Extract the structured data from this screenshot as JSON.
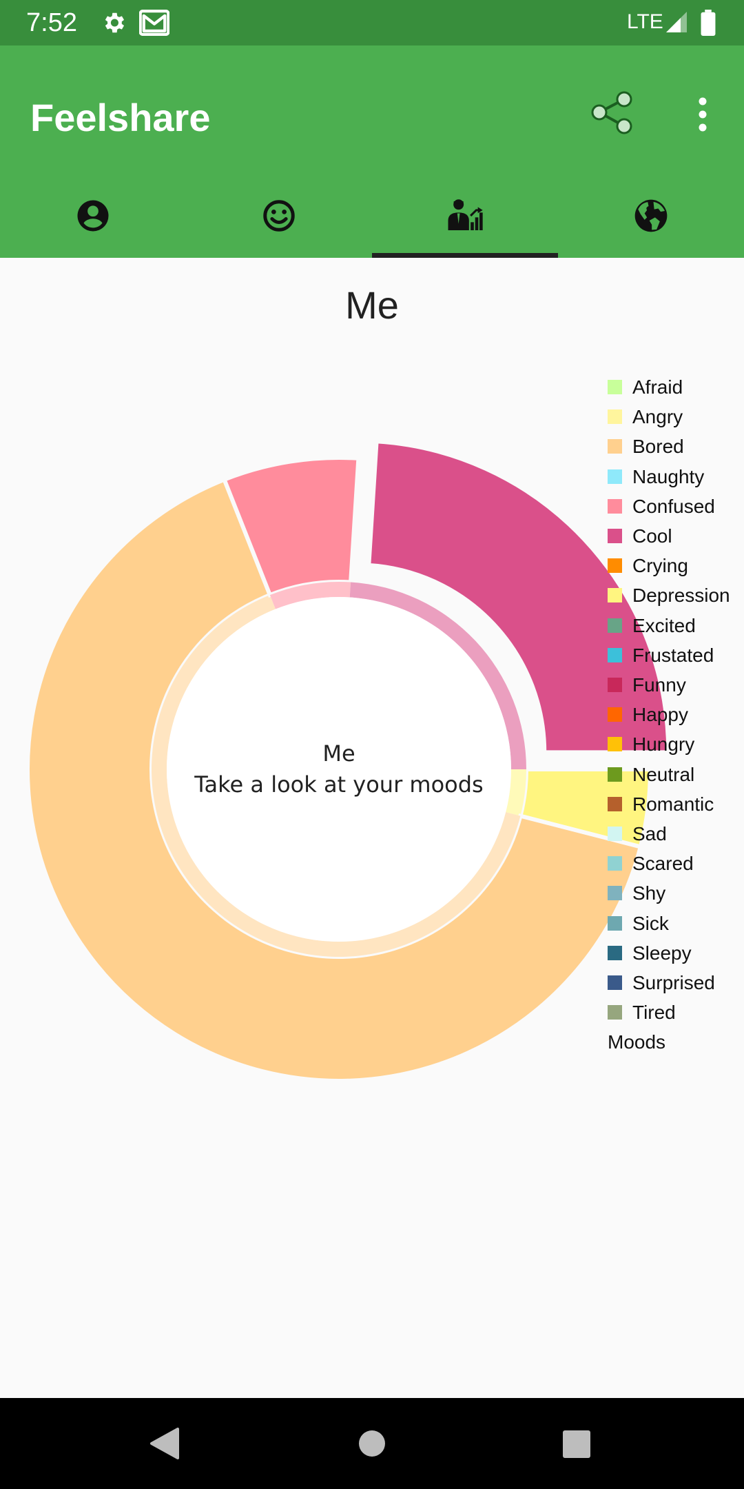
{
  "status_bar": {
    "time": "7:52",
    "network": "LTE",
    "icons": [
      "settings-icon",
      "gmail-icon",
      "signal-icon",
      "battery-icon"
    ]
  },
  "app_bar": {
    "title": "Feelshare",
    "actions": [
      "share-icon",
      "more-vert-icon"
    ],
    "background": "#4caf50"
  },
  "tabs": [
    {
      "icon": "account-circle-icon",
      "selected": false
    },
    {
      "icon": "smiley-icon",
      "selected": false
    },
    {
      "icon": "person-chart-icon",
      "selected": true
    },
    {
      "icon": "globe-icon",
      "selected": false
    }
  ],
  "page_title": "Me",
  "chart_center": {
    "line1": "Me",
    "line2": "Take a look at your moods"
  },
  "legend_title": "Moods",
  "chart_data": {
    "type": "pie",
    "labels": [
      "Afraid",
      "Angry",
      "Bored",
      "Naughty",
      "Confused",
      "Cool",
      "Crying",
      "Depression",
      "Excited",
      "Frustated",
      "Funny",
      "Happy",
      "Hungry",
      "Neutral",
      "Romantic",
      "Sad",
      "Scared",
      "Shy",
      "Sick",
      "Sleepy",
      "Surprised",
      "Tired"
    ],
    "colors": [
      "#c8ff9a",
      "#fff59d",
      "#ffd08e",
      "#8fe9fa",
      "#ff8c9c",
      "#da508a",
      "#ff8c00",
      "#fff580",
      "#68a487",
      "#3cc0da",
      "#c8285a",
      "#ff6600",
      "#ffc107",
      "#6d9a1e",
      "#b5602c",
      "#d2f5f2",
      "#90d2d2",
      "#7fb2be",
      "#6ea8b0",
      "#2a6a82",
      "#3a5a8a",
      "#96a67e"
    ],
    "values": [
      0,
      0,
      65,
      0,
      7,
      24,
      0,
      4,
      0,
      0,
      0,
      0,
      0,
      0,
      0,
      0,
      0,
      0,
      0,
      0,
      0,
      0
    ],
    "legend_position": "right",
    "donut": true
  },
  "nav_bar": {
    "buttons": [
      "back-icon",
      "home-icon",
      "recents-icon"
    ]
  }
}
